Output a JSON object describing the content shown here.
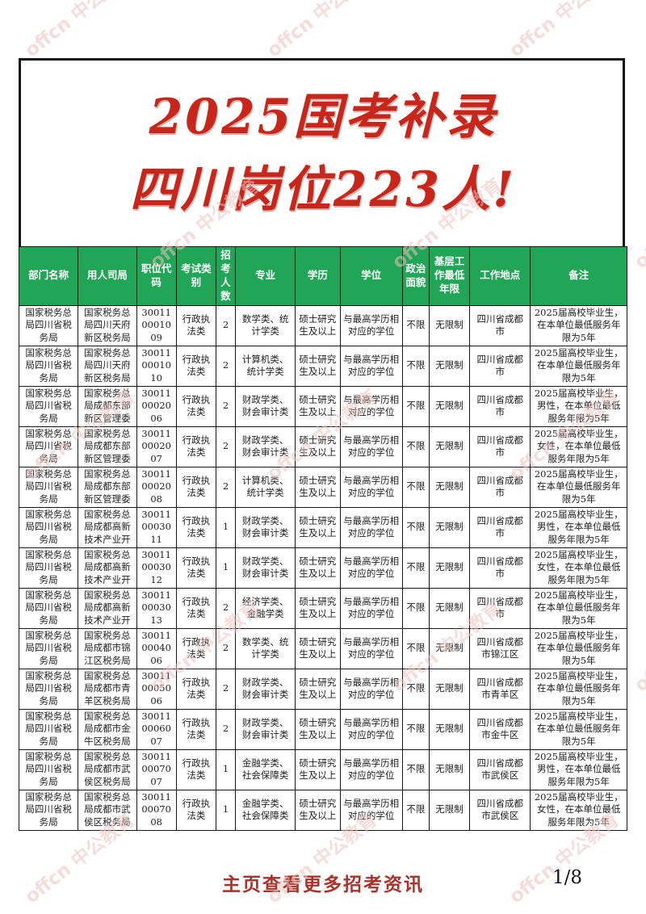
{
  "watermark": {
    "text": "offcn 中公教育"
  },
  "title": {
    "line1": "2025国考补录",
    "line2": "四川岗位223人!"
  },
  "colors": {
    "header_green": "#21a556",
    "title_red": "#c7261a",
    "footer_red": "#a93229",
    "watermark_pink": "#eec2be"
  },
  "table": {
    "headers": [
      "部门名称",
      "用人司局",
      "职位代码",
      "考试类别",
      "招考人数",
      "专业",
      "学历",
      "学位",
      "政治面貌",
      "基层工作最低年限",
      "工作地点",
      "备注"
    ],
    "column_keys": [
      "department",
      "bureau",
      "position_code",
      "exam_category",
      "openings",
      "major",
      "education",
      "degree",
      "political_status",
      "grassroots_experience",
      "work_location",
      "remarks"
    ],
    "rows": [
      [
        "国家税务总局四川省税务局",
        "国家税务总局四川天府新区税务局",
        "300110001009",
        "行政执法类",
        "2",
        "数学类、统计学类",
        "硕士研究生及以上",
        "与最高学历相对应的学位",
        "不限",
        "无限制",
        "四川省成都市",
        "2025届高校毕业生，在本单位最低服务年限为5年"
      ],
      [
        "国家税务总局四川省税务局",
        "国家税务总局四川天府新区税务局",
        "300110001010",
        "行政执法类",
        "2",
        "计算机类、统计学类",
        "硕士研究生及以上",
        "与最高学历相对应的学位",
        "不限",
        "无限制",
        "四川省成都市",
        "2025届高校毕业生，在本单位最低服务年限为5年"
      ],
      [
        "国家税务总局四川省税务局",
        "国家税务总局成都东部新区管理委",
        "300110002006",
        "行政执法类",
        "2",
        "财政学类、财会审计类",
        "硕士研究生及以上",
        "与最高学历相对应的学位",
        "不限",
        "无限制",
        "四川省成都市",
        "2025届高校毕业生，男性，在本单位最低服务年限为5年"
      ],
      [
        "国家税务总局四川省税务局",
        "国家税务总局成都东部新区管理委",
        "300110002007",
        "行政执法类",
        "2",
        "财政学类、财会审计类",
        "硕士研究生及以上",
        "与最高学历相对应的学位",
        "不限",
        "无限制",
        "四川省成都市",
        "2025届高校毕业生，女性，在本单位最低服务年限为5年"
      ],
      [
        "国家税务总局四川省税务局",
        "国家税务总局成都东部新区管理委",
        "300110002008",
        "行政执法类",
        "2",
        "计算机类、统计学类",
        "硕士研究生及以上",
        "与最高学历相对应的学位",
        "不限",
        "无限制",
        "四川省成都市",
        "2025届高校毕业生，在本单位最低服务年限为5年"
      ],
      [
        "国家税务总局四川省税务局",
        "国家税务总局成都高新技术产业开",
        "300110003011",
        "行政执法类",
        "1",
        "财政学类、财会审计类",
        "硕士研究生及以上",
        "与最高学历相对应的学位",
        "不限",
        "无限制",
        "四川省成都市",
        "2025届高校毕业生，男性，在本单位最低服务年限为5年"
      ],
      [
        "国家税务总局四川省税务局",
        "国家税务总局成都高新技术产业开",
        "300110003012",
        "行政执法类",
        "1",
        "财政学类、财会审计类",
        "硕士研究生及以上",
        "与最高学历相对应的学位",
        "不限",
        "无限制",
        "四川省成都市",
        "2025届高校毕业生，女性，在本单位最低服务年限为5年"
      ],
      [
        "国家税务总局四川省税务局",
        "国家税务总局成都高新技术产业开",
        "300110003013",
        "行政执法类",
        "2",
        "经济学类、金融学类",
        "硕士研究生及以上",
        "与最高学历相对应的学位",
        "不限",
        "无限制",
        "四川省成都市",
        "2025届高校毕业生，在本单位最低服务年限为5年"
      ],
      [
        "国家税务总局四川省税务局",
        "国家税务总局成都市锦江区税务局",
        "300110004006",
        "行政执法类",
        "2",
        "数学类、统计学类",
        "硕士研究生及以上",
        "与最高学历相对应的学位",
        "不限",
        "无限制",
        "四川省成都市锦江区",
        "2025届高校毕业生，在本单位最低服务年限为5年"
      ],
      [
        "国家税务总局四川省税务局",
        "国家税务总局成都市青羊区税务局",
        "300110005006",
        "行政执法类",
        "2",
        "财政学类、财会审计类",
        "硕士研究生及以上",
        "与最高学历相对应的学位",
        "不限",
        "无限制",
        "四川省成都市青羊区",
        "2025届高校毕业生，在本单位最低服务年限为5年"
      ],
      [
        "国家税务总局四川省税务局",
        "国家税务总局成都市金牛区税务局",
        "300110006007",
        "行政执法类",
        "2",
        "财政学类、财会审计类",
        "硕士研究生及以上",
        "与最高学历相对应的学位",
        "不限",
        "无限制",
        "四川省成都市金牛区",
        "2025届高校毕业生，在本单位最低服务年限为5年"
      ],
      [
        "国家税务总局四川省税务局",
        "国家税务总局成都市武侯区税务局",
        "300110007007",
        "行政执法类",
        "1",
        "金融学类、社会保障类",
        "硕士研究生及以上",
        "与最高学历相对应的学位",
        "不限",
        "无限制",
        "四川省成都市武侯区",
        "2025届高校毕业生，男性，在本单位最低服务年限为5年"
      ],
      [
        "国家税务总局四川省税务局",
        "国家税务总局成都市武侯区税务局",
        "300110007008",
        "行政执法类",
        "1",
        "金融学类、社会保障类",
        "硕士研究生及以上",
        "与最高学历相对应的学位",
        "不限",
        "无限制",
        "四川省成都市武侯区",
        "2025届高校毕业生，女性，在本单位最低服务年限为5年"
      ]
    ]
  },
  "footer": {
    "link_text": "主页查看更多招考资讯",
    "page_indicator": "1/8"
  }
}
